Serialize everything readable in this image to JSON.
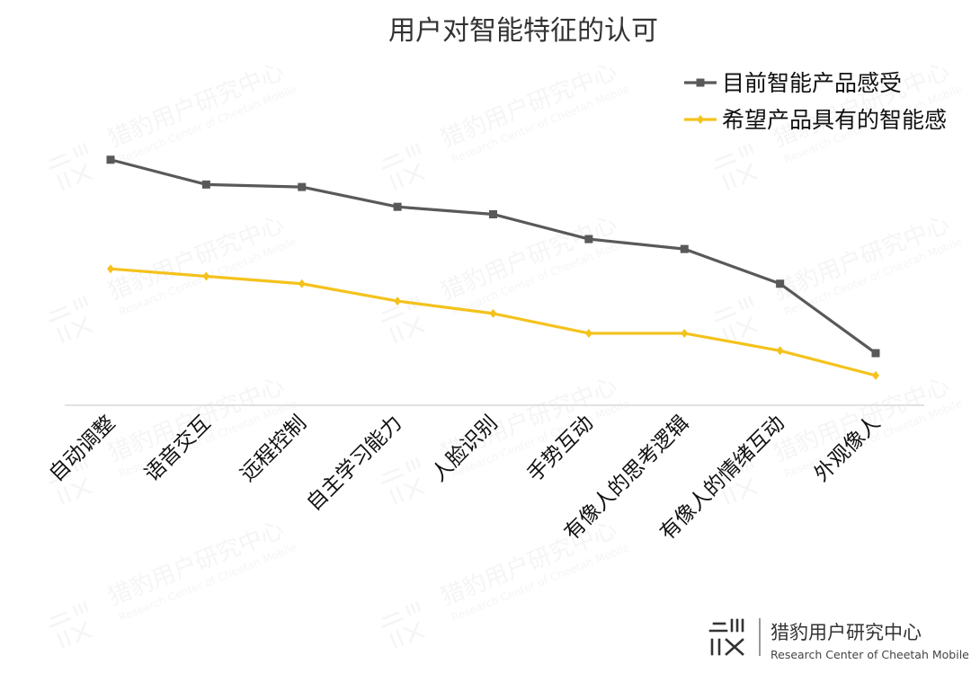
{
  "chart_data": {
    "type": "line",
    "title": "用户对智能特征的认可",
    "categories": [
      "自动调整",
      "语音交互",
      "远程控制",
      "自主学习能力",
      "人脸识别",
      "手势互动",
      "有像人的思考逻辑",
      "有像人的情绪互动",
      "外观像人"
    ],
    "series": [
      {
        "name": "目前智能产品感受",
        "color": "#595959",
        "marker": "square",
        "values": [
          0.99,
          0.89,
          0.88,
          0.8,
          0.77,
          0.67,
          0.63,
          0.49,
          0.21
        ]
      },
      {
        "name": "希望产品具有的智能感",
        "color": "#F4C21C",
        "marker": "diamond",
        "values": [
          0.55,
          0.52,
          0.49,
          0.42,
          0.37,
          0.29,
          0.29,
          0.22,
          0.12
        ]
      }
    ],
    "ylim": [
      0,
      1
    ],
    "xlabel": "",
    "ylabel": "",
    "grid": false,
    "legend_position": "top-right"
  },
  "watermark": {
    "org_name": "猎豹用户研究中心",
    "org_name_en": "Research Center of Cheetah Mobile"
  }
}
